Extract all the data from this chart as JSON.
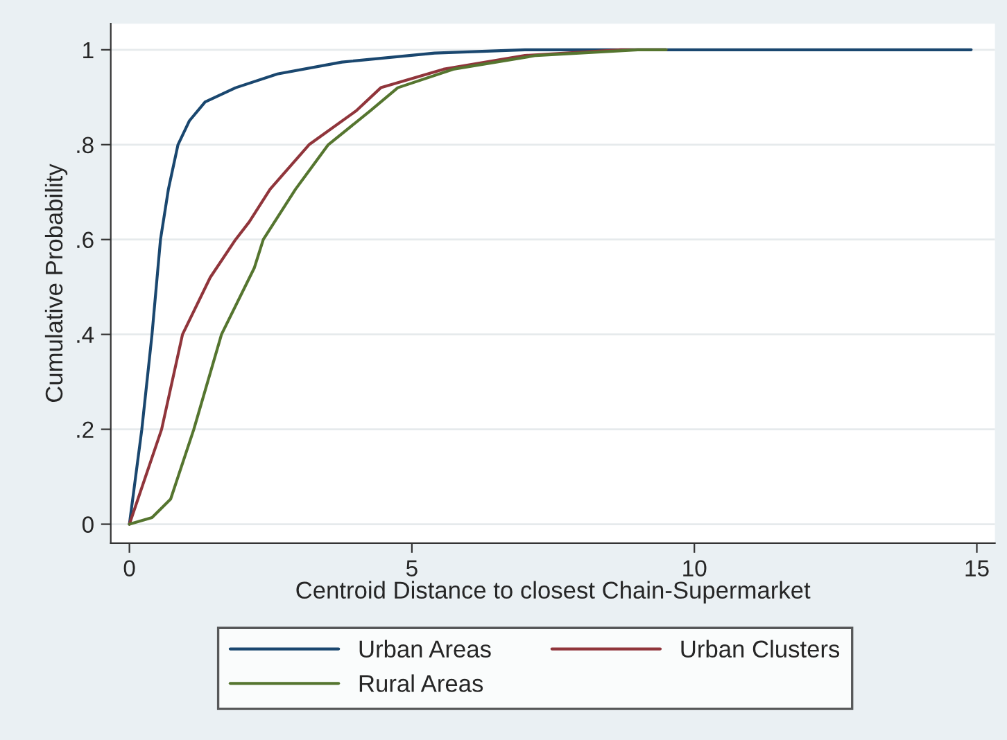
{
  "chart_data": {
    "type": "line",
    "xlabel": "Centroid Distance to closest Chain-Supermarket",
    "ylabel": "Cumulative Probability",
    "xlim": [
      -0.33,
      15.32
    ],
    "ylim": [
      -0.04,
      1.055
    ],
    "xticks": [
      0,
      5,
      10,
      15
    ],
    "yticks": [
      0,
      {
        "value": 0.2,
        "label": ".2"
      },
      {
        "value": 0.4,
        "label": ".4"
      },
      {
        "value": 0.6,
        "label": ".6"
      },
      {
        "value": 0.8,
        "label": ".8"
      },
      1
    ],
    "grid": "y",
    "legend": "bottom",
    "line_style": "solid",
    "marker": "none",
    "series": [
      {
        "name": "Urban Areas",
        "color": "#1a476f",
        "x": [
          0,
          0.22,
          0.4,
          0.55,
          0.69,
          0.86,
          1.06,
          1.34,
          1.88,
          2.62,
          3.76,
          5.4,
          7.0,
          14.9
        ],
        "values": [
          0,
          0.2,
          0.4,
          0.6,
          0.706,
          0.8,
          0.85,
          0.89,
          0.92,
          0.949,
          0.974,
          0.993,
          1,
          1
        ]
      },
      {
        "name": "Urban Clusters",
        "color": "#90353b",
        "x": [
          0,
          0.57,
          0.94,
          1.43,
          1.88,
          2.12,
          2.49,
          3.18,
          4.01,
          4.45,
          5.56,
          7.0,
          8.7,
          9.5
        ],
        "values": [
          0,
          0.2,
          0.4,
          0.52,
          0.6,
          0.637,
          0.706,
          0.8,
          0.871,
          0.92,
          0.959,
          0.988,
          1,
          1
        ]
      },
      {
        "name": "Rural Areas",
        "color": "#55752f",
        "x": [
          0,
          0.4,
          0.73,
          1.14,
          1.63,
          2.21,
          2.37,
          2.94,
          3.52,
          4.26,
          4.75,
          5.73,
          7.2,
          9.0,
          9.5
        ],
        "values": [
          0,
          0.014,
          0.053,
          0.2,
          0.4,
          0.54,
          0.6,
          0.706,
          0.8,
          0.871,
          0.92,
          0.959,
          0.988,
          1,
          1
        ]
      }
    ]
  }
}
